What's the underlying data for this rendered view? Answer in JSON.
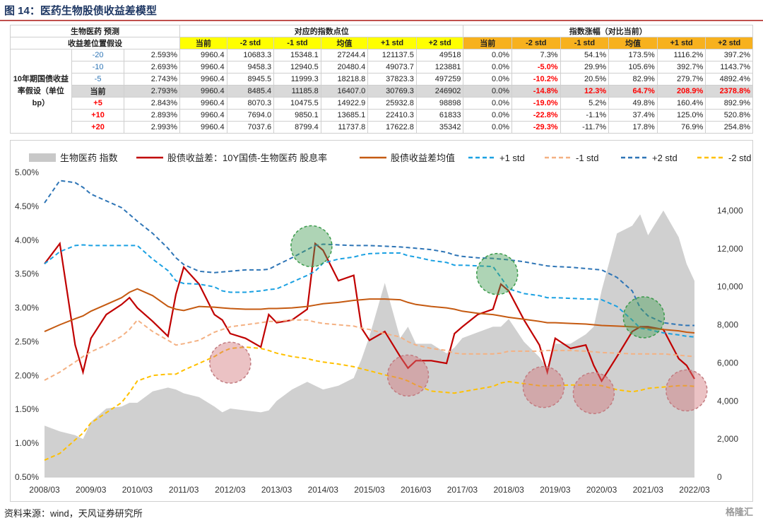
{
  "title": "图 14：医药生物股债收益差模型",
  "table": {
    "corner_top": "生物医药 预测",
    "corner_bottom": "收益差位置假设",
    "group_points": "对应的指数点位",
    "group_change": "指数涨幅（对比当前）",
    "row_header": "10年期国债收益率假设（单位bp）",
    "col_headers": [
      "当前",
      "-2 std",
      "-1 std",
      "均值",
      "+1 std",
      "+2 std"
    ],
    "rows": [
      {
        "bp": "-20",
        "yield": "2.593%",
        "points": [
          "9960.4",
          "10683.3",
          "15348.1",
          "27244.4",
          "121137.5",
          "49518"
        ],
        "change": [
          "0.0%",
          "7.3%",
          "54.1%",
          "173.5%",
          "1116.2%",
          "397.2%"
        ]
      },
      {
        "bp": "-10",
        "yield": "2.693%",
        "points": [
          "9960.4",
          "9458.3",
          "12940.5",
          "20480.4",
          "49073.7",
          "123881"
        ],
        "change": [
          "0.0%",
          "-5.0%",
          "29.9%",
          "105.6%",
          "392.7%",
          "1143.7%"
        ]
      },
      {
        "bp": "-5",
        "yield": "2.743%",
        "points": [
          "9960.4",
          "8945.5",
          "11999.3",
          "18218.8",
          "37823.3",
          "497259"
        ],
        "change": [
          "0.0%",
          "-10.2%",
          "20.5%",
          "82.9%",
          "279.7%",
          "4892.4%"
        ]
      },
      {
        "bp": "当前",
        "yield": "2.793%",
        "points": [
          "9960.4",
          "8485.4",
          "11185.8",
          "16407.0",
          "30769.3",
          "246902"
        ],
        "change": [
          "0.0%",
          "-14.8%",
          "12.3%",
          "64.7%",
          "208.9%",
          "2378.8%"
        ]
      },
      {
        "bp": "+5",
        "yield": "2.843%",
        "points": [
          "9960.4",
          "8070.3",
          "10475.5",
          "14922.9",
          "25932.8",
          "98898"
        ],
        "change": [
          "0.0%",
          "-19.0%",
          "5.2%",
          "49.8%",
          "160.4%",
          "892.9%"
        ]
      },
      {
        "bp": "+10",
        "yield": "2.893%",
        "points": [
          "9960.4",
          "7694.0",
          "9850.1",
          "13685.1",
          "22410.3",
          "61833"
        ],
        "change": [
          "0.0%",
          "-22.8%",
          "-1.1%",
          "37.4%",
          "125.0%",
          "520.8%"
        ]
      },
      {
        "bp": "+20",
        "yield": "2.993%",
        "points": [
          "9960.4",
          "7037.6",
          "8799.4",
          "11737.8",
          "17622.8",
          "35342"
        ],
        "change": [
          "0.0%",
          "-29.3%",
          "-11.7%",
          "17.8%",
          "76.9%",
          "254.8%"
        ]
      }
    ]
  },
  "chart_data": {
    "type": "line",
    "x_ticks": [
      "2008/03",
      "2009/03",
      "2010/03",
      "2011/03",
      "2012/03",
      "2013/03",
      "2014/03",
      "2015/03",
      "2016/03",
      "2017/03",
      "2018/03",
      "2019/03",
      "2020/03",
      "2021/03",
      "2022/03"
    ],
    "x": [
      2008.17,
      2008.5,
      2008.83,
      2009.0,
      2009.17,
      2009.5,
      2009.83,
      2010.0,
      2010.17,
      2010.5,
      2010.83,
      2011.0,
      2011.17,
      2011.5,
      2011.83,
      2012.0,
      2012.17,
      2012.5,
      2012.83,
      2013.0,
      2013.17,
      2013.5,
      2013.83,
      2014.0,
      2014.17,
      2014.5,
      2014.83,
      2015.0,
      2015.17,
      2015.5,
      2015.83,
      2016.0,
      2016.17,
      2016.5,
      2016.83,
      2017.0,
      2017.17,
      2017.5,
      2017.83,
      2018.0,
      2018.17,
      2018.5,
      2018.83,
      2019.0,
      2019.17,
      2019.5,
      2019.83,
      2020.0,
      2020.17,
      2020.5,
      2020.83,
      2021.0,
      2021.17,
      2021.5,
      2021.83,
      2022.0,
      2022.17
    ],
    "left_axis": {
      "min": 0.005,
      "max": 0.05,
      "ticks": [
        "0.50%",
        "1.00%",
        "1.50%",
        "2.00%",
        "2.50%",
        "3.00%",
        "3.50%",
        "4.00%",
        "4.50%",
        "5.00%"
      ]
    },
    "right_axis": {
      "min": 0,
      "max": 16000,
      "ticks": [
        "0",
        "2,000",
        "4,000",
        "6,000",
        "8,000",
        "10,000",
        "12,000",
        "14,000"
      ]
    },
    "legend_position": "top",
    "series": [
      {
        "name": "生物医药 指数",
        "axis": "right",
        "style": "area",
        "color": "#c8c8c8",
        "values": [
          2700,
          2400,
          2200,
          2000,
          2900,
          3600,
          3700,
          3900,
          3900,
          4500,
          4700,
          4600,
          4400,
          4200,
          3700,
          3400,
          3600,
          3500,
          3400,
          3500,
          4000,
          4600,
          5000,
          4800,
          4600,
          4800,
          5200,
          6200,
          7400,
          10200,
          7300,
          7900,
          7000,
          7000,
          6500,
          6800,
          7300,
          7600,
          7900,
          7900,
          8300,
          7100,
          6300,
          5700,
          7000,
          7000,
          7500,
          7900,
          9800,
          12800,
          13200,
          13800,
          12700,
          14000,
          12600,
          11200,
          10300
        ]
      },
      {
        "name": "股债收益差：10Y国债-生物医药 股息率",
        "axis": "left",
        "style": "line",
        "color": "#c00000",
        "values": [
          0.0365,
          0.0395,
          0.0245,
          0.0205,
          0.0255,
          0.029,
          0.0305,
          0.0315,
          0.03,
          0.028,
          0.0258,
          0.032,
          0.036,
          0.0335,
          0.029,
          0.0282,
          0.0262,
          0.0255,
          0.0242,
          0.029,
          0.0278,
          0.0282,
          0.0298,
          0.0395,
          0.0385,
          0.034,
          0.0348,
          0.027,
          0.0252,
          0.0265,
          0.0228,
          0.0211,
          0.0222,
          0.0222,
          0.0218,
          0.0262,
          0.0272,
          0.029,
          0.0298,
          0.0335,
          0.0325,
          0.0282,
          0.0245,
          0.0205,
          0.0255,
          0.024,
          0.0245,
          0.0215,
          0.0192,
          0.0228,
          0.0265,
          0.0272,
          0.0272,
          0.0268,
          0.0225,
          0.0215,
          0.0195
        ]
      },
      {
        "name": "股债收益差均值",
        "axis": "left",
        "style": "line",
        "color": "#c55a11",
        "values": [
          0.0265,
          0.0275,
          0.0284,
          0.0288,
          0.0295,
          0.0305,
          0.0315,
          0.0323,
          0.0328,
          0.0318,
          0.0302,
          0.0298,
          0.0296,
          0.0302,
          0.0301,
          0.03,
          0.0299,
          0.0298,
          0.0298,
          0.0299,
          0.0299,
          0.03,
          0.0302,
          0.0304,
          0.0306,
          0.0308,
          0.0311,
          0.0312,
          0.0313,
          0.0313,
          0.0312,
          0.0308,
          0.0305,
          0.0302,
          0.03,
          0.0298,
          0.0295,
          0.0292,
          0.029,
          0.0288,
          0.0286,
          0.0283,
          0.028,
          0.0278,
          0.0278,
          0.0277,
          0.0276,
          0.0275,
          0.0274,
          0.0273,
          0.0272,
          0.0271,
          0.027,
          0.0268,
          0.0266,
          0.0264,
          0.0263
        ]
      },
      {
        "name": "+1 std",
        "axis": "left",
        "style": "dash",
        "color": "#1ba1e2",
        "values": [
          0.0365,
          0.0383,
          0.0392,
          0.0393,
          0.0392,
          0.0392,
          0.0392,
          0.0392,
          0.0392,
          0.0372,
          0.0355,
          0.034,
          0.0336,
          0.0335,
          0.0331,
          0.0325,
          0.0323,
          0.0323,
          0.0325,
          0.0327,
          0.0328,
          0.0338,
          0.0348,
          0.0354,
          0.0366,
          0.0372,
          0.0375,
          0.0378,
          0.038,
          0.0381,
          0.0381,
          0.0377,
          0.0375,
          0.037,
          0.0367,
          0.0363,
          0.0363,
          0.0362,
          0.0361,
          0.0345,
          0.0328,
          0.0321,
          0.0318,
          0.0315,
          0.0315,
          0.0314,
          0.0313,
          0.0313,
          0.0312,
          0.0302,
          0.0282,
          0.027,
          0.0268,
          0.0263,
          0.026,
          0.0258,
          0.0257
        ]
      },
      {
        "name": "-1 std",
        "axis": "left",
        "style": "dash",
        "color": "#f4b183",
        "values": [
          0.0193,
          0.0205,
          0.022,
          0.0228,
          0.0235,
          0.0245,
          0.0258,
          0.0268,
          0.0282,
          0.0265,
          0.0252,
          0.0245,
          0.0247,
          0.0252,
          0.0264,
          0.0268,
          0.0272,
          0.0275,
          0.0278,
          0.028,
          0.028,
          0.0282,
          0.0282,
          0.0279,
          0.0277,
          0.0275,
          0.0273,
          0.027,
          0.0268,
          0.0262,
          0.0257,
          0.025,
          0.0245,
          0.024,
          0.0237,
          0.0233,
          0.0232,
          0.0232,
          0.0232,
          0.0233,
          0.0236,
          0.0236,
          0.0236,
          0.0237,
          0.0237,
          0.0237,
          0.0236,
          0.0235,
          0.0234,
          0.0233,
          0.0232,
          0.0232,
          0.0232,
          0.0232,
          0.023,
          0.0229,
          0.0228
        ]
      },
      {
        "name": "+2 std",
        "axis": "left",
        "style": "dash",
        "color": "#2e75b6",
        "values": [
          0.0455,
          0.0488,
          0.0485,
          0.0478,
          0.0468,
          0.0458,
          0.0448,
          0.0438,
          0.0428,
          0.041,
          0.0388,
          0.0374,
          0.0364,
          0.0354,
          0.0352,
          0.0353,
          0.0354,
          0.0356,
          0.0356,
          0.0357,
          0.0363,
          0.0374,
          0.0386,
          0.0392,
          0.0394,
          0.0393,
          0.0392,
          0.0392,
          0.0392,
          0.0391,
          0.039,
          0.0389,
          0.0388,
          0.0386,
          0.0382,
          0.0378,
          0.0376,
          0.0374,
          0.0373,
          0.0372,
          0.0371,
          0.0368,
          0.0364,
          0.0362,
          0.0361,
          0.036,
          0.0358,
          0.0357,
          0.0356,
          0.0345,
          0.0325,
          0.03,
          0.0288,
          0.0278,
          0.0275,
          0.0274,
          0.0274
        ]
      },
      {
        "name": "-2 std",
        "axis": "left",
        "style": "dash",
        "color": "#ffc000",
        "values": [
          0.0075,
          0.0085,
          0.0105,
          0.0115,
          0.013,
          0.0145,
          0.016,
          0.0175,
          0.0192,
          0.02,
          0.0202,
          0.0202,
          0.0208,
          0.0218,
          0.0228,
          0.0235,
          0.024,
          0.0242,
          0.024,
          0.0237,
          0.0233,
          0.0228,
          0.0225,
          0.0222,
          0.022,
          0.0217,
          0.0213,
          0.021,
          0.0207,
          0.0201,
          0.0196,
          0.0192,
          0.0186,
          0.0177,
          0.0175,
          0.0174,
          0.0176,
          0.018,
          0.0184,
          0.0189,
          0.0191,
          0.0188,
          0.0185,
          0.0185,
          0.0185,
          0.0186,
          0.0186,
          0.0186,
          0.0185,
          0.0179,
          0.0176,
          0.0178,
          0.0181,
          0.0183,
          0.0185,
          0.0185,
          0.0184
        ]
      }
    ],
    "highlights": [
      {
        "type": "high",
        "x": 2013.92,
        "y": 0.0391
      },
      {
        "type": "high",
        "x": 2017.92,
        "y": 0.035
      },
      {
        "type": "high",
        "x": 2021.08,
        "y": 0.0286
      },
      {
        "type": "low",
        "x": 2012.17,
        "y": 0.0219
      },
      {
        "type": "low",
        "x": 2016.0,
        "y": 0.02
      },
      {
        "type": "low",
        "x": 2018.92,
        "y": 0.0183
      },
      {
        "type": "low",
        "x": 2020.0,
        "y": 0.0174
      },
      {
        "type": "low",
        "x": 2022.0,
        "y": 0.0178
      }
    ]
  },
  "footer": {
    "source": "资料来源：wind，天风证券研究所",
    "watermark": "格隆汇"
  }
}
